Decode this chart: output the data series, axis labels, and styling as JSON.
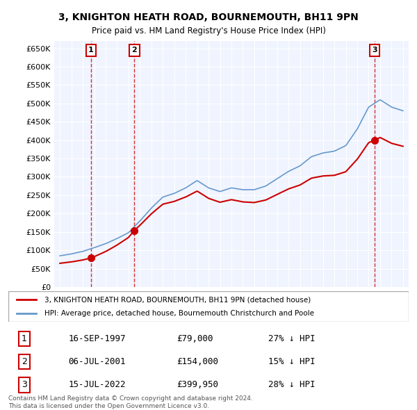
{
  "title": "3, KNIGHTON HEATH ROAD, BOURNEMOUTH, BH11 9PN",
  "subtitle": "Price paid vs. HM Land Registry's House Price Index (HPI)",
  "ylabel_ticks": [
    "£0",
    "£50K",
    "£100K",
    "£150K",
    "£200K",
    "£250K",
    "£300K",
    "£350K",
    "£400K",
    "£450K",
    "£500K",
    "£550K",
    "£600K",
    "£650K"
  ],
  "ytick_values": [
    0,
    50000,
    100000,
    150000,
    200000,
    250000,
    300000,
    350000,
    400000,
    450000,
    500000,
    550000,
    600000,
    650000
  ],
  "xlim_start": 1994.5,
  "xlim_end": 2025.5,
  "ylim_top": 670000,
  "sale_dates": [
    1997.71,
    2001.51,
    2022.54
  ],
  "sale_prices": [
    79000,
    154000,
    399950
  ],
  "sale_labels": [
    "1",
    "2",
    "3"
  ],
  "legend_sale": "3, KNIGHTON HEATH ROAD, BOURNEMOUTH, BH11 9PN (detached house)",
  "legend_hpi": "HPI: Average price, detached house, Bournemouth Christchurch and Poole",
  "table_data": [
    [
      "1",
      "16-SEP-1997",
      "£79,000",
      "27% ↓ HPI"
    ],
    [
      "2",
      "06-JUL-2001",
      "£154,000",
      "15% ↓ HPI"
    ],
    [
      "3",
      "15-JUL-2022",
      "£399,950",
      "28% ↓ HPI"
    ]
  ],
  "footer": "Contains HM Land Registry data © Crown copyright and database right 2024.\nThis data is licensed under the Open Government Licence v3.0.",
  "sale_color": "#cc0000",
  "hpi_color": "#6699cc",
  "background_color": "#f0f4ff"
}
